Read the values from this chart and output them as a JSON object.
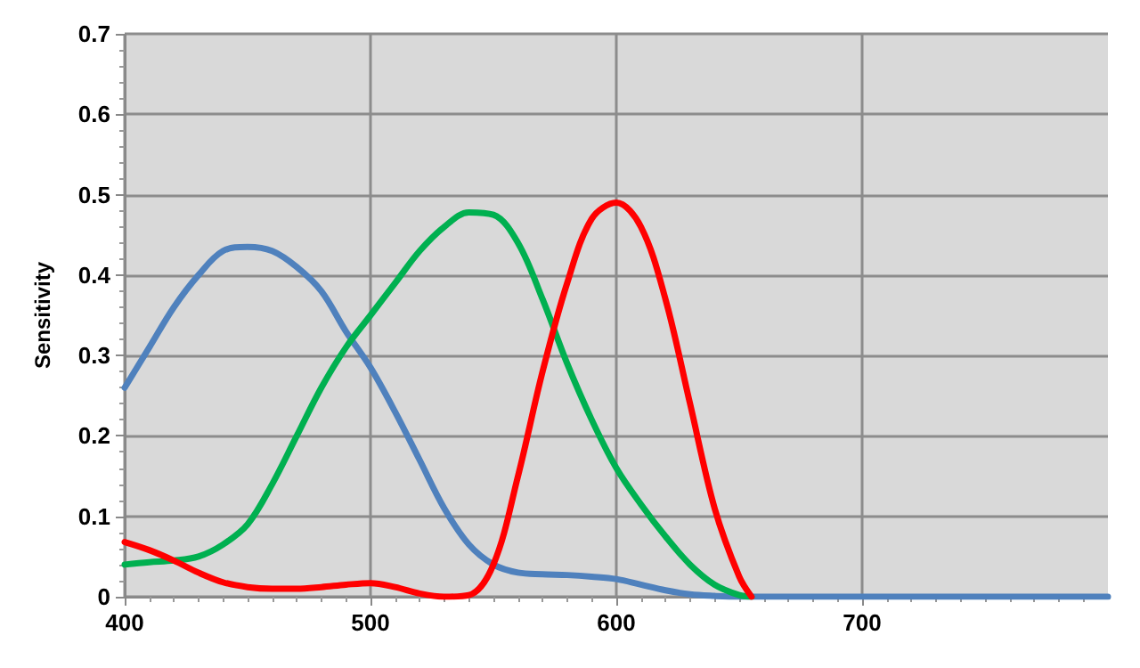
{
  "chart_data": {
    "type": "line",
    "ylabel": "Sensitivity",
    "xlim": [
      400,
      800
    ],
    "xticks": [
      400,
      500,
      600,
      700
    ],
    "ylim": [
      0,
      0.7
    ],
    "yticks": [
      0,
      0.1,
      0.2,
      0.3,
      0.4,
      0.5,
      0.6,
      0.7
    ],
    "grid": true,
    "marker": "none",
    "line_style": "solid",
    "series": [
      {
        "color": "#4f81bd",
        "x": [
          400,
          410,
          420,
          430,
          440,
          450,
          460,
          470,
          480,
          490,
          500,
          510,
          520,
          530,
          540,
          550,
          560,
          570,
          580,
          590,
          600,
          610,
          620,
          630,
          640,
          650,
          700,
          800
        ],
        "values": [
          0.26,
          0.31,
          0.36,
          0.4,
          0.43,
          0.435,
          0.43,
          0.41,
          0.38,
          0.33,
          0.285,
          0.23,
          0.17,
          0.11,
          0.065,
          0.04,
          0.03,
          0.028,
          0.027,
          0.025,
          0.022,
          0.015,
          0.008,
          0.003,
          0.001,
          0,
          0,
          0
        ]
      },
      {
        "color": "#00b050",
        "x": [
          400,
          410,
          420,
          430,
          440,
          450,
          460,
          470,
          480,
          490,
          500,
          510,
          520,
          530,
          540,
          550,
          560,
          570,
          580,
          590,
          600,
          610,
          620,
          630,
          640,
          650,
          655
        ],
        "values": [
          0.04,
          0.043,
          0.045,
          0.05,
          0.065,
          0.09,
          0.14,
          0.2,
          0.26,
          0.31,
          0.35,
          0.39,
          0.43,
          0.46,
          0.478,
          0.475,
          0.44,
          0.37,
          0.29,
          0.22,
          0.16,
          0.115,
          0.075,
          0.04,
          0.015,
          0.002,
          0
        ]
      },
      {
        "color": "#ff0000",
        "x": [
          400,
          410,
          420,
          430,
          440,
          450,
          460,
          470,
          480,
          490,
          500,
          510,
          520,
          530,
          540,
          550,
          560,
          570,
          580,
          590,
          600,
          610,
          620,
          630,
          640,
          650,
          655
        ],
        "values": [
          0.068,
          0.058,
          0.045,
          0.03,
          0.018,
          0.012,
          0.01,
          0.01,
          0.012,
          0.015,
          0.017,
          0.012,
          0.004,
          0,
          0.002,
          0.04,
          0.15,
          0.28,
          0.39,
          0.47,
          0.49,
          0.46,
          0.37,
          0.24,
          0.11,
          0.025,
          0
        ]
      }
    ]
  }
}
